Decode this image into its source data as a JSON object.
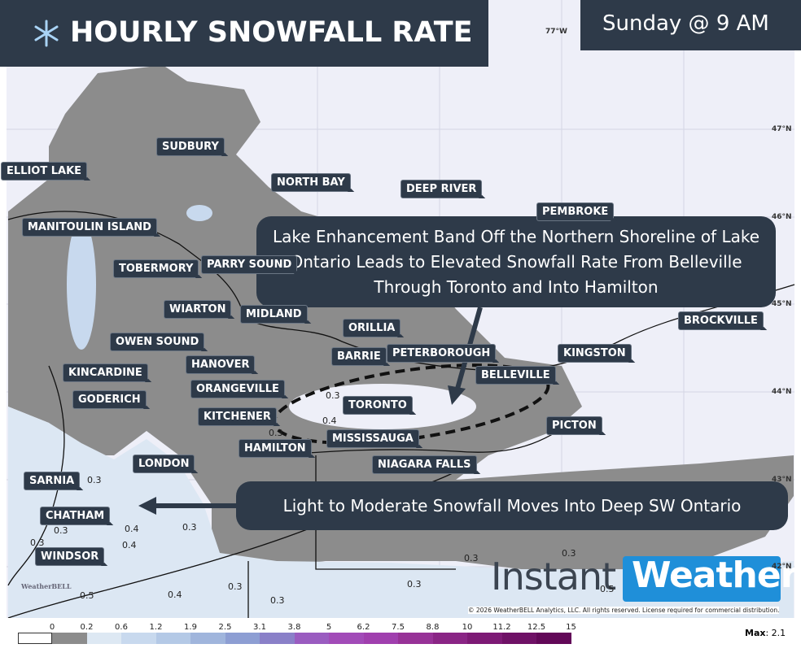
{
  "header": {
    "title": "HOURLY SNOWFALL RATE",
    "time": "Sunday @ 9 AM"
  },
  "cities": [
    "ELLIOT LAKE",
    "SUDBURY",
    "NORTH BAY",
    "DEEP RIVER",
    "PEMBROKE",
    "MANITOULIN ISLAND",
    "TOBERMORY",
    "PARRY SOUND",
    "WIARTON",
    "MIDLAND",
    "ORILLIA",
    "BROCKVILLE",
    "OWEN SOUND",
    "BARRIE",
    "PETERBOROUGH",
    "KINGSTON",
    "HANOVER",
    "KINCARDINE",
    "BELLEVILLE",
    "ORANGEVILLE",
    "GODERICH",
    "TORONTO",
    "KITCHENER",
    "PICTON",
    "MISSISSAUGA",
    "HAMILTON",
    "LONDON",
    "NIAGARA FALLS",
    "SARNIA",
    "CHATHAM",
    "WINDSOR"
  ],
  "map_values": [
    "0.3",
    "0.4",
    "0.3",
    "0.3",
    "0.3",
    "0.4",
    "0.4",
    "0.3",
    "0.3",
    "0.3",
    "0.3",
    "0.3",
    "0.3",
    "0.3",
    "0.4",
    "0.5",
    "0.5"
  ],
  "grid_labels": [
    "77°W",
    "47°N",
    "46°N",
    "45°N",
    "44°N",
    "43°N",
    "42°N"
  ],
  "annotations": [
    "Lake Enhancement Band Off the Northern Shoreline of Lake Ontario Leads to Elevated Snowfall Rate From Belleville Through Toronto and Into Hamilton",
    "Light to Moderate Snowfall Moves Into Deep SW Ontario"
  ],
  "logo": {
    "first": "Instant",
    "second": "Weather",
    "small": "WeatherBELL"
  },
  "copyright": "© 2026 WeatherBELL Analytics, LLC. All rights reserved. License required for commercial distribution.",
  "legend": {
    "ticks": [
      "0",
      "0.2",
      "0.6",
      "1.2",
      "1.9",
      "2.5",
      "3.1",
      "3.8",
      "5",
      "6.2",
      "7.5",
      "8.8",
      "10",
      "11.2",
      "12.5",
      "15"
    ]
  },
  "max": {
    "label": "Max",
    "text": ": 2.1"
  }
}
